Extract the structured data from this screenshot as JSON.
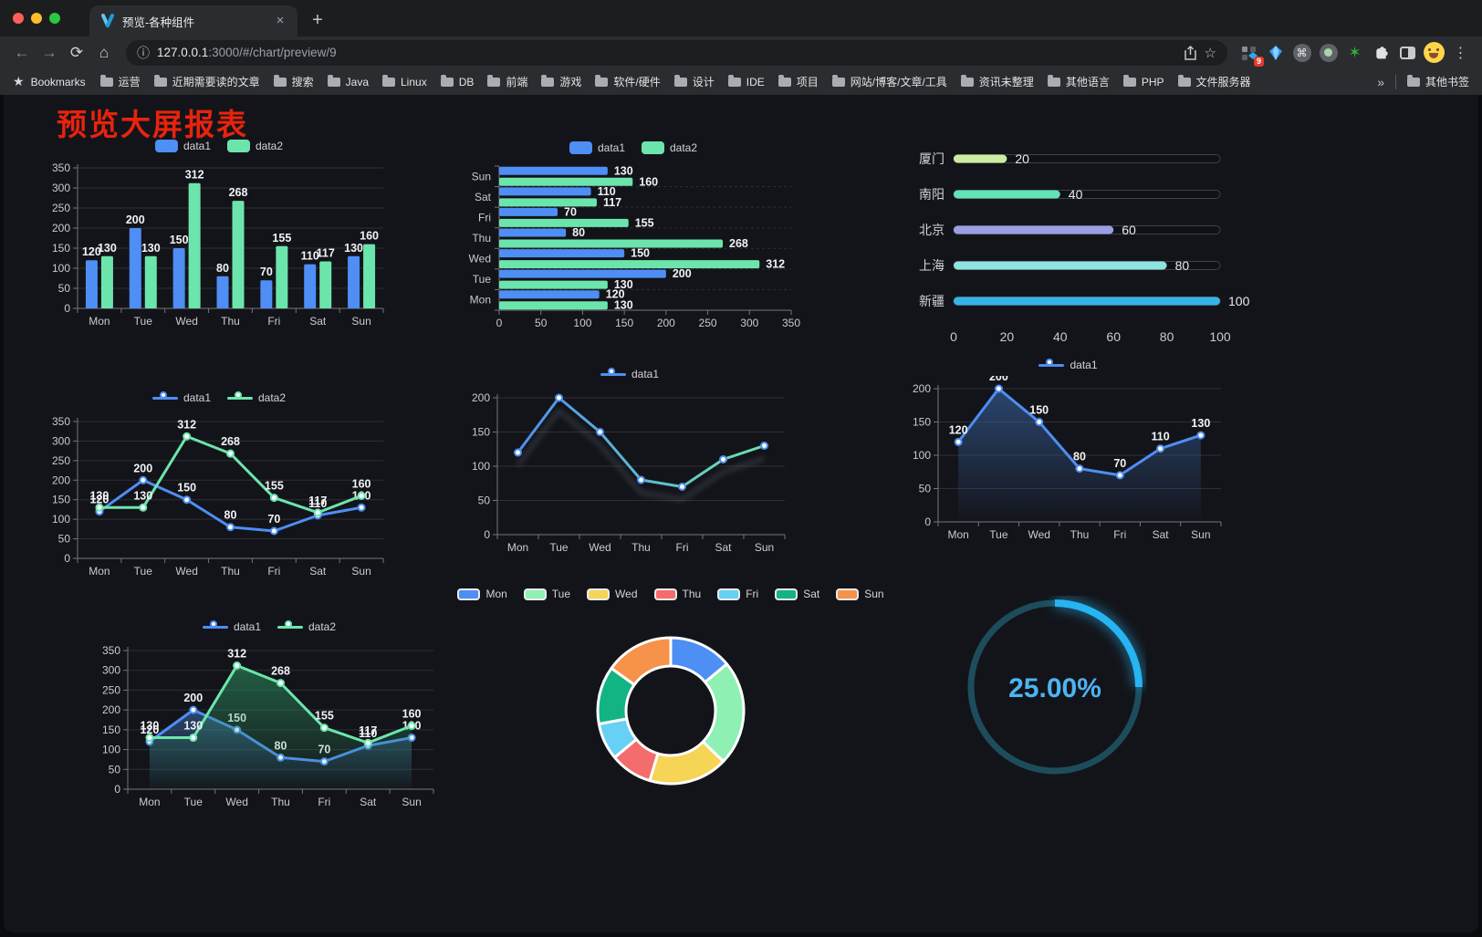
{
  "browser": {
    "tab_title": "预览-各种组件",
    "url_host": "127.0.0.1",
    "url_rest": ":3000/#/chart/preview/9",
    "extension_badge": "9",
    "bookmarks_label": "Bookmarks",
    "bookmarks": [
      "运营",
      "近期需要读的文章",
      "搜索",
      "Java",
      "Linux",
      "DB",
      "前端",
      "游戏",
      "软件/硬件",
      "设计",
      "IDE",
      "项目",
      "网站/博客/文章/工具",
      "资讯未整理",
      "其他语言",
      "PHP",
      "文件服务器"
    ],
    "other_bookmarks": "其他书签",
    "icons": {
      "back": "←",
      "forward": "→",
      "reload": "⟳",
      "home": "⌂",
      "info": "ⓘ",
      "star": "☆",
      "menu": "⋮",
      "close": "×",
      "new_tab": "+",
      "overflow": "»",
      "bookmarks_star": "★",
      "cmd": "⌘"
    }
  },
  "page": {
    "title": "预览大屏报表",
    "title_color": "#e8230d"
  },
  "chart_data": [
    {
      "type": "bar",
      "categories": [
        "Mon",
        "Tue",
        "Wed",
        "Thu",
        "Fri",
        "Sat",
        "Sun"
      ],
      "series": [
        {
          "name": "data1",
          "color": "#4e8ef5",
          "values": [
            120,
            200,
            150,
            80,
            70,
            110,
            130
          ]
        },
        {
          "name": "data2",
          "color": "#6ce5ad",
          "values": [
            130,
            130,
            312,
            268,
            155,
            117,
            160
          ]
        }
      ],
      "ylim": [
        0,
        350
      ],
      "ytick_step": 50,
      "labels": true,
      "grid": true,
      "legend_pos": "top"
    },
    {
      "type": "hbar",
      "categories": [
        "Mon",
        "Tue",
        "Wed",
        "Thu",
        "Fri",
        "Sat",
        "Sun"
      ],
      "series": [
        {
          "name": "data1",
          "color": "#4e8ef5",
          "values": [
            120,
            200,
            150,
            80,
            70,
            110,
            130
          ]
        },
        {
          "name": "data2",
          "color": "#6ce5ad",
          "values": [
            130,
            130,
            312,
            268,
            155,
            117,
            160
          ]
        }
      ],
      "xlim": [
        0,
        350
      ],
      "xtick_step": 50,
      "labels": true,
      "legend_pos": "top"
    },
    {
      "type": "progress",
      "max": 100,
      "axis_ticks": [
        0,
        20,
        40,
        60,
        80,
        100
      ],
      "items": [
        {
          "label": "厦门",
          "value": 20,
          "color": "#cdeca0"
        },
        {
          "label": "南阳",
          "value": 40,
          "color": "#63e2b7"
        },
        {
          "label": "北京",
          "value": 60,
          "color": "#9a9ee3"
        },
        {
          "label": "上海",
          "value": 80,
          "color": "#8fe3e0"
        },
        {
          "label": "新疆",
          "value": 100,
          "color": "#35b3e6"
        }
      ]
    },
    {
      "type": "line",
      "categories": [
        "Mon",
        "Tue",
        "Wed",
        "Thu",
        "Fri",
        "Sat",
        "Sun"
      ],
      "series": [
        {
          "name": "data1",
          "color": "#4e8ef5",
          "values": [
            120,
            200,
            150,
            80,
            70,
            110,
            130
          ]
        },
        {
          "name": "data2",
          "color": "#6ce5ad",
          "values": [
            130,
            130,
            312,
            268,
            155,
            117,
            160
          ]
        }
      ],
      "ylim": [
        0,
        350
      ],
      "ytick_step": 50,
      "labels": true
    },
    {
      "type": "line",
      "categories": [
        "Mon",
        "Tue",
        "Wed",
        "Thu",
        "Fri",
        "Sat",
        "Sun"
      ],
      "series": [
        {
          "name": "data1",
          "color": "#4e8ef5",
          "marker_color": "#4e8ef5",
          "gradient": [
            "#4e8ef5",
            "#6ce5ad"
          ],
          "values": [
            120,
            200,
            150,
            80,
            70,
            110,
            130
          ]
        }
      ],
      "ylim": [
        0,
        200
      ],
      "ytick_step": 50,
      "labels": false,
      "shadow": true
    },
    {
      "type": "line",
      "categories": [
        "Mon",
        "Tue",
        "Wed",
        "Thu",
        "Fri",
        "Sat",
        "Sun"
      ],
      "series": [
        {
          "name": "data1",
          "color": "#4e8ef5",
          "fill": "#3e6eb4",
          "values": [
            120,
            200,
            150,
            80,
            70,
            110,
            130
          ]
        }
      ],
      "ylim": [
        0,
        200
      ],
      "ytick_step": 50,
      "labels": true
    },
    {
      "type": "line",
      "categories": [
        "Mon",
        "Tue",
        "Wed",
        "Thu",
        "Fri",
        "Sat",
        "Sun"
      ],
      "series": [
        {
          "name": "data1",
          "color": "#4e8ef5",
          "fill": "#3e6eb4",
          "values": [
            120,
            200,
            150,
            80,
            70,
            110,
            130
          ]
        },
        {
          "name": "data2",
          "color": "#6ce5ad",
          "fill": "#2e9a66",
          "values": [
            130,
            130,
            312,
            268,
            155,
            117,
            160
          ]
        }
      ],
      "ylim": [
        0,
        350
      ],
      "ytick_step": 50,
      "labels": true
    },
    {
      "type": "donut",
      "categories": [
        "Mon",
        "Tue",
        "Wed",
        "Thu",
        "Fri",
        "Sat",
        "Sun"
      ],
      "values": [
        120,
        200,
        150,
        80,
        70,
        110,
        130
      ],
      "colors": [
        "#4d8ff2",
        "#8ff0b4",
        "#f6d455",
        "#f56c6c",
        "#67d0f5",
        "#12b483",
        "#f7924a"
      ]
    },
    {
      "type": "gauge",
      "value": 25,
      "label": "25.00%",
      "color": "#27b4f2",
      "track": "#1d4d5c",
      "text_color": "#4db4f2"
    }
  ]
}
